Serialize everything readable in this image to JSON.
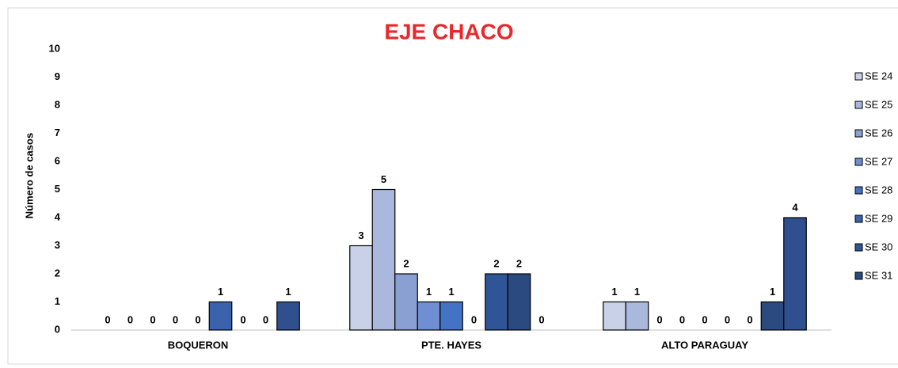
{
  "chart_data": {
    "type": "bar",
    "title": "EJE CHACO",
    "y_label": "Número de casos",
    "categories": [
      "BOQUERON",
      "PTE. HAYES",
      "ALTO PARAGUAY"
    ],
    "series": [
      {
        "name": "SE 24",
        "color": "#c9d1e8",
        "values": [
          0,
          3,
          1
        ]
      },
      {
        "name": "SE 25",
        "color": "#a9b8dc",
        "values": [
          0,
          5,
          1
        ]
      },
      {
        "name": "SE 26",
        "color": "#8aa0d3",
        "values": [
          0,
          2,
          0
        ]
      },
      {
        "name": "SE 27",
        "color": "#6f8fd2",
        "values": [
          0,
          1,
          0
        ]
      },
      {
        "name": "SE 28",
        "color": "#4472c4",
        "values": [
          0,
          1,
          0
        ]
      },
      {
        "name": "SE 29",
        "color": "#3a62ad",
        "values": [
          1,
          0,
          0
        ]
      },
      {
        "name": "SE 30",
        "color": "#2f5597",
        "values": [
          0,
          2,
          0
        ]
      },
      {
        "name": "SE 31",
        "color": "#2b4a80",
        "values": [
          0,
          2,
          1
        ]
      },
      {
        "color": "#2f4f8f",
        "values": [
          1,
          0,
          4
        ]
      }
    ],
    "ylim": [
      0,
      10
    ],
    "yticks": [
      0,
      1,
      2,
      3,
      4,
      5,
      6,
      7,
      8,
      9,
      10
    ],
    "grid": false
  }
}
